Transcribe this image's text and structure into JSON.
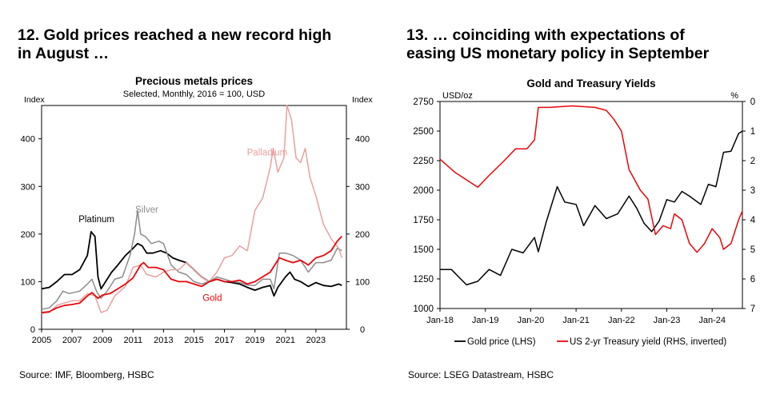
{
  "left_panel": {
    "heading_line1": "12. Gold prices reached a new record high",
    "heading_line2": "in August …",
    "source": "Source: IMF, Bloomberg, HSBC"
  },
  "right_panel": {
    "heading_line1": "13. … coinciding with expectations of",
    "heading_line2": "easing US monetary policy in September",
    "source": "Source: LSEG Datastream, HSBC"
  },
  "chart_data": [
    {
      "type": "line",
      "title": "Precious metals prices",
      "subtitle": "Selected, Monthly, 2016 = 100, USD",
      "ylabel_left": "Index",
      "ylabel_right": "Index",
      "xlim": [
        2005,
        2025
      ],
      "ylim": [
        0,
        470
      ],
      "x_ticks": [
        "2005",
        "2007",
        "2009",
        "2011",
        "2013",
        "2015",
        "2017",
        "2019",
        "2021",
        "2023"
      ],
      "y_ticks": [
        "0",
        "100",
        "200",
        "300",
        "400"
      ],
      "grid": false,
      "series": [
        {
          "name": "Platinum",
          "color": "#000000",
          "x": [
            2005.0,
            2005.5,
            2006.0,
            2006.5,
            2007.0,
            2007.5,
            2008.0,
            2008.25,
            2008.5,
            2008.7,
            2008.9,
            2009.2,
            2009.6,
            2010.0,
            2010.5,
            2011.0,
            2011.3,
            2011.6,
            2011.9,
            2012.3,
            2012.8,
            2013.2,
            2013.6,
            2014.0,
            2014.5,
            2015.0,
            2015.5,
            2016.0,
            2016.5,
            2017.0,
            2017.5,
            2018.0,
            2018.5,
            2019.0,
            2019.5,
            2020.0,
            2020.25,
            2020.5,
            2021.0,
            2021.3,
            2021.6,
            2022.0,
            2022.5,
            2023.0,
            2023.5,
            2024.0,
            2024.5,
            2024.7
          ],
          "values": [
            85,
            88,
            100,
            115,
            115,
            125,
            155,
            205,
            195,
            110,
            85,
            100,
            120,
            135,
            155,
            170,
            180,
            175,
            160,
            160,
            165,
            160,
            150,
            145,
            140,
            125,
            110,
            100,
            105,
            100,
            98,
            95,
            88,
            82,
            88,
            92,
            70,
            88,
            110,
            120,
            105,
            100,
            90,
            98,
            92,
            90,
            95,
            92
          ]
        },
        {
          "name": "Silver",
          "color": "#8c8c8c",
          "x": [
            2005.0,
            2005.5,
            2006.0,
            2006.4,
            2006.8,
            2007.5,
            2008.0,
            2008.3,
            2008.6,
            2008.9,
            2009.3,
            2009.8,
            2010.3,
            2010.8,
            2011.1,
            2011.3,
            2011.5,
            2011.8,
            2012.2,
            2012.7,
            2013.0,
            2013.5,
            2014.0,
            2014.5,
            2015.0,
            2015.5,
            2016.0,
            2016.5,
            2017.0,
            2017.5,
            2018.0,
            2018.5,
            2019.0,
            2019.5,
            2020.0,
            2020.25,
            2020.6,
            2021.0,
            2021.5,
            2022.0,
            2022.5,
            2023.0,
            2023.5,
            2024.0,
            2024.4,
            2024.7
          ],
          "values": [
            42,
            45,
            60,
            80,
            75,
            80,
            95,
            105,
            80,
            65,
            80,
            105,
            110,
            155,
            200,
            250,
            200,
            195,
            180,
            185,
            180,
            135,
            120,
            115,
            100,
            95,
            100,
            110,
            105,
            100,
            98,
            93,
            92,
            105,
            105,
            85,
            160,
            160,
            155,
            145,
            120,
            140,
            140,
            145,
            170,
            165
          ]
        },
        {
          "name": "Palladium",
          "color": "#e8a0a0",
          "x": [
            2005.0,
            2005.5,
            2006.0,
            2006.5,
            2007.0,
            2007.5,
            2008.0,
            2008.5,
            2008.9,
            2009.3,
            2009.8,
            2010.5,
            2011.0,
            2011.5,
            2011.9,
            2012.5,
            2013.0,
            2013.5,
            2014.0,
            2014.5,
            2015.0,
            2015.5,
            2016.0,
            2016.5,
            2017.0,
            2017.5,
            2018.0,
            2018.5,
            2019.0,
            2019.5,
            2020.0,
            2020.2,
            2020.5,
            2020.9,
            2021.1,
            2021.4,
            2021.7,
            2022.0,
            2022.3,
            2022.6,
            2023.0,
            2023.5,
            2024.0,
            2024.5,
            2024.7
          ],
          "values": [
            33,
            35,
            50,
            55,
            60,
            60,
            75,
            70,
            35,
            40,
            70,
            90,
            130,
            135,
            115,
            110,
            120,
            125,
            125,
            140,
            125,
            110,
            100,
            120,
            150,
            155,
            175,
            165,
            250,
            275,
            340,
            380,
            330,
            360,
            470,
            440,
            360,
            350,
            380,
            320,
            280,
            220,
            190,
            170,
            150
          ]
        },
        {
          "name": "Gold",
          "color": "#e8060c",
          "x": [
            2005.0,
            2005.5,
            2006.0,
            2006.5,
            2007.0,
            2007.5,
            2008.0,
            2008.3,
            2008.7,
            2009.0,
            2009.5,
            2010.0,
            2010.5,
            2011.0,
            2011.5,
            2011.7,
            2012.0,
            2012.5,
            2013.0,
            2013.5,
            2014.0,
            2014.5,
            2015.0,
            2015.5,
            2016.0,
            2016.5,
            2017.0,
            2017.5,
            2018.0,
            2018.5,
            2019.0,
            2019.5,
            2020.0,
            2020.6,
            2021.0,
            2021.5,
            2022.0,
            2022.5,
            2023.0,
            2023.5,
            2024.0,
            2024.4,
            2024.7
          ],
          "values": [
            35,
            37,
            45,
            50,
            52,
            55,
            70,
            77,
            65,
            72,
            75,
            85,
            95,
            108,
            135,
            140,
            130,
            130,
            125,
            105,
            100,
            100,
            95,
            90,
            100,
            105,
            100,
            100,
            103,
            95,
            100,
            110,
            120,
            150,
            145,
            140,
            145,
            135,
            150,
            155,
            165,
            185,
            195
          ]
        }
      ],
      "annotations": [
        "Platinum",
        "Silver",
        "Palladium",
        "Gold"
      ]
    },
    {
      "type": "line",
      "title": "Gold and Treasury Yields",
      "ylabel_left": "USD/oz",
      "ylabel_right": "%",
      "xlim": [
        "2018-01",
        "2024-09"
      ],
      "ylim_left": [
        1000,
        2750
      ],
      "ylim_right": [
        7,
        0
      ],
      "right_axis_inverted": true,
      "x_ticks": [
        "Jan-18",
        "Jan-19",
        "Jan-20",
        "Jan-21",
        "Jan-22",
        "Jan-23",
        "Jan-24"
      ],
      "y_ticks_left": [
        "1000",
        "1250",
        "1500",
        "1750",
        "2000",
        "2250",
        "2500",
        "2750"
      ],
      "y_ticks_right": [
        "0",
        "1",
        "2",
        "3",
        "4",
        "5",
        "6",
        "7"
      ],
      "grid": false,
      "legend_position": "bottom",
      "series": [
        {
          "name": "Gold price (LHS)",
          "axis": "left",
          "color": "#000000",
          "x": [
            "2018-01",
            "2018-04",
            "2018-08",
            "2018-11",
            "2019-02",
            "2019-05",
            "2019-08",
            "2019-11",
            "2020-02",
            "2020-03",
            "2020-05",
            "2020-08",
            "2020-10",
            "2021-01",
            "2021-03",
            "2021-06",
            "2021-09",
            "2021-12",
            "2022-03",
            "2022-05",
            "2022-07",
            "2022-09",
            "2022-11",
            "2023-01",
            "2023-03",
            "2023-05",
            "2023-07",
            "2023-10",
            "2023-12",
            "2024-02",
            "2024-04",
            "2024-06",
            "2024-08",
            "2024-09"
          ],
          "values": [
            1330,
            1330,
            1200,
            1230,
            1330,
            1280,
            1500,
            1470,
            1600,
            1480,
            1720,
            2030,
            1900,
            1880,
            1700,
            1870,
            1760,
            1800,
            1950,
            1850,
            1720,
            1650,
            1740,
            1920,
            1900,
            1990,
            1950,
            1880,
            2050,
            2030,
            2320,
            2330,
            2480,
            2500
          ]
        },
        {
          "name": "US 2-yr Treasury yield (RHS, inverted)",
          "axis": "right",
          "color": "#e8060c",
          "x": [
            "2018-01",
            "2018-05",
            "2018-11",
            "2019-02",
            "2019-06",
            "2019-09",
            "2019-12",
            "2020-02",
            "2020-03",
            "2020-06",
            "2020-12",
            "2021-06",
            "2021-09",
            "2021-11",
            "2022-01",
            "2022-03",
            "2022-06",
            "2022-08",
            "2022-10",
            "2022-12",
            "2023-02",
            "2023-03",
            "2023-05",
            "2023-07",
            "2023-09",
            "2023-11",
            "2024-01",
            "2024-03",
            "2024-04",
            "2024-06",
            "2024-08",
            "2024-09"
          ],
          "values": [
            1.95,
            2.4,
            2.9,
            2.5,
            2.0,
            1.6,
            1.6,
            1.3,
            0.2,
            0.2,
            0.15,
            0.2,
            0.3,
            0.6,
            1.0,
            2.3,
            3.0,
            3.3,
            4.5,
            4.2,
            4.3,
            3.8,
            4.0,
            4.8,
            5.1,
            4.8,
            4.3,
            4.6,
            5.0,
            4.8,
            4.0,
            3.7
          ]
        }
      ]
    }
  ]
}
